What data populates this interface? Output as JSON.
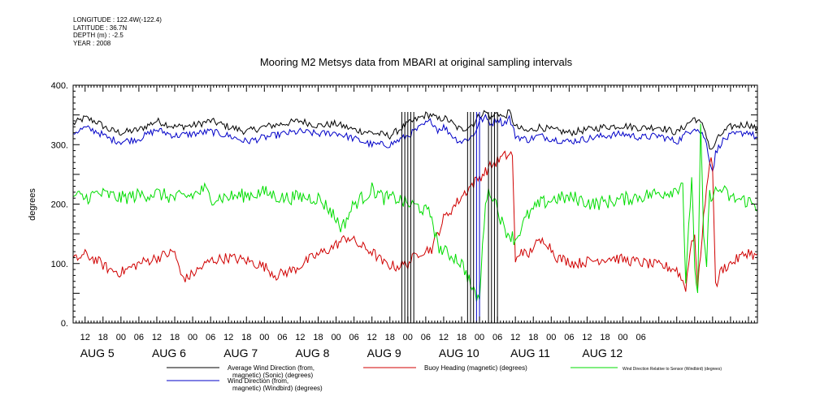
{
  "meta": {
    "longitude": "LONGITUDE : 122.4W(-122.4)",
    "latitude": "LATITUDE : 36.7N",
    "depth": "DEPTH (m) : -2.5",
    "year": "YEAR : 2008"
  },
  "chart_data": {
    "type": "line",
    "title": "Mooring M2 Metsys data from MBARI at original sampling intervals",
    "ylabel": "degrees",
    "xlabel": "",
    "ylim": [
      0,
      400
    ],
    "xlim_hours": [
      -16,
      213
    ],
    "y_ticks": [
      "0.",
      "100.",
      "200.",
      "300.",
      "400."
    ],
    "x_tick_labels": [
      "12",
      "18",
      "00",
      "06",
      "12",
      "18",
      "00",
      "06",
      "12",
      "18",
      "00",
      "06",
      "12",
      "18",
      "00",
      "06",
      "12",
      "18",
      "00",
      "06",
      "12",
      "18",
      "00",
      "06",
      "12",
      "18",
      "00",
      "06",
      "12",
      "18",
      "00",
      "06"
    ],
    "day_labels": [
      "AUG  5",
      "AUG  6",
      "AUG  7",
      "AUG  8",
      "AUG  9",
      "AUG 10",
      "AUG 11",
      "AUG 12"
    ],
    "grid": false,
    "legend_position": "bottom",
    "series": [
      {
        "name": "Average Wind Direction (from, magnetic) (Sonic) (degrees)",
        "color": "#000000",
        "points": [
          [
            -16,
            335
          ],
          [
            -12,
            345
          ],
          [
            -8,
            338
          ],
          [
            -4,
            325
          ],
          [
            0,
            320
          ],
          [
            6,
            325
          ],
          [
            12,
            340
          ],
          [
            18,
            330
          ],
          [
            24,
            332
          ],
          [
            30,
            340
          ],
          [
            36,
            330
          ],
          [
            42,
            322
          ],
          [
            48,
            330
          ],
          [
            54,
            335
          ],
          [
            60,
            340
          ],
          [
            66,
            332
          ],
          [
            72,
            335
          ],
          [
            78,
            325
          ],
          [
            84,
            320
          ],
          [
            90,
            315
          ],
          [
            96,
            335
          ],
          [
            102,
            350
          ],
          [
            104,
            350
          ],
          [
            106,
            342
          ],
          [
            108,
            345
          ],
          [
            110,
            340
          ],
          [
            112,
            330
          ],
          [
            114,
            325
          ],
          [
            118,
            335
          ],
          [
            120,
            350
          ],
          [
            122,
            355
          ],
          [
            124,
            345
          ],
          [
            126,
            355
          ],
          [
            128,
            345
          ],
          [
            130,
            355
          ],
          [
            132,
            330
          ],
          [
            136,
            322
          ],
          [
            140,
            330
          ],
          [
            144,
            325
          ],
          [
            150,
            320
          ],
          [
            156,
            325
          ],
          [
            162,
            330
          ],
          [
            168,
            332
          ],
          [
            174,
            328
          ],
          [
            180,
            330
          ],
          [
            186,
            320
          ],
          [
            192,
            345
          ],
          [
            195,
            330
          ],
          [
            196,
            315
          ],
          [
            197,
            295
          ],
          [
            198,
            290
          ],
          [
            199,
            305
          ],
          [
            201,
            318
          ],
          [
            204,
            330
          ],
          [
            210,
            335
          ],
          [
            213,
            325
          ]
        ]
      },
      {
        "name": "Wind Direction (from, magnetic) (Windbird) (degrees)",
        "color": "#0000c8",
        "points": [
          [
            -16,
            320
          ],
          [
            -12,
            328
          ],
          [
            -8,
            322
          ],
          [
            -4,
            310
          ],
          [
            0,
            305
          ],
          [
            6,
            310
          ],
          [
            12,
            325
          ],
          [
            18,
            315
          ],
          [
            24,
            318
          ],
          [
            30,
            322
          ],
          [
            36,
            315
          ],
          [
            42,
            305
          ],
          [
            48,
            312
          ],
          [
            54,
            318
          ],
          [
            60,
            322
          ],
          [
            66,
            318
          ],
          [
            72,
            320
          ],
          [
            78,
            310
          ],
          [
            84,
            300
          ],
          [
            90,
            300
          ],
          [
            96,
            315
          ],
          [
            102,
            335
          ],
          [
            104,
            340
          ],
          [
            106,
            325
          ],
          [
            108,
            330
          ],
          [
            110,
            320
          ],
          [
            112,
            310
          ],
          [
            114,
            305
          ],
          [
            118,
            315
          ],
          [
            120,
            340
          ],
          [
            122,
            345
          ],
          [
            124,
            335
          ],
          [
            126,
            345
          ],
          [
            128,
            335
          ],
          [
            130,
            345
          ],
          [
            132,
            315
          ],
          [
            136,
            308
          ],
          [
            140,
            315
          ],
          [
            144,
            310
          ],
          [
            150,
            305
          ],
          [
            156,
            310
          ],
          [
            162,
            315
          ],
          [
            168,
            318
          ],
          [
            174,
            312
          ],
          [
            180,
            315
          ],
          [
            186,
            305
          ],
          [
            192,
            330
          ],
          [
            195,
            315
          ],
          [
            196,
            300
          ],
          [
            197,
            275
          ],
          [
            198,
            255
          ],
          [
            199,
            285
          ],
          [
            201,
            305
          ],
          [
            204,
            315
          ],
          [
            210,
            322
          ],
          [
            213,
            310
          ]
        ]
      },
      {
        "name": "Buoy Heading (magnetic) (degrees)",
        "color": "#d00000",
        "points": [
          [
            -16,
            105
          ],
          [
            -12,
            115
          ],
          [
            -8,
            105
          ],
          [
            -4,
            90
          ],
          [
            0,
            85
          ],
          [
            6,
            100
          ],
          [
            12,
            110
          ],
          [
            18,
            120
          ],
          [
            20,
            80
          ],
          [
            22,
            75
          ],
          [
            26,
            90
          ],
          [
            30,
            105
          ],
          [
            36,
            110
          ],
          [
            42,
            105
          ],
          [
            48,
            95
          ],
          [
            52,
            80
          ],
          [
            58,
            90
          ],
          [
            64,
            110
          ],
          [
            70,
            125
          ],
          [
            76,
            145
          ],
          [
            80,
            130
          ],
          [
            84,
            120
          ],
          [
            88,
            100
          ],
          [
            92,
            95
          ],
          [
            96,
            100
          ],
          [
            100,
            120
          ],
          [
            104,
            125
          ],
          [
            108,
            175
          ],
          [
            112,
            200
          ],
          [
            116,
            225
          ],
          [
            120,
            245
          ],
          [
            124,
            265
          ],
          [
            128,
            280
          ],
          [
            131,
            285
          ],
          [
            132,
            100
          ],
          [
            134,
            125
          ],
          [
            136,
            110
          ],
          [
            138,
            130
          ],
          [
            142,
            140
          ],
          [
            146,
            110
          ],
          [
            152,
            100
          ],
          [
            158,
            105
          ],
          [
            164,
            110
          ],
          [
            170,
            105
          ],
          [
            176,
            100
          ],
          [
            182,
            95
          ],
          [
            186,
            90
          ],
          [
            189,
            60
          ],
          [
            191,
            140
          ],
          [
            192,
            150
          ],
          [
            193,
            55
          ],
          [
            195,
            180
          ],
          [
            196,
            220
          ],
          [
            197,
            275
          ],
          [
            198,
            270
          ],
          [
            199,
            60
          ],
          [
            201,
            90
          ],
          [
            204,
            100
          ],
          [
            210,
            120
          ],
          [
            213,
            110
          ]
        ]
      },
      {
        "name": "Wind Direction Relative to Sensor (Windbird) (degrees)",
        "color": "#00dd00",
        "points": [
          [
            -16,
            215
          ],
          [
            -12,
            210
          ],
          [
            -8,
            218
          ],
          [
            -4,
            215
          ],
          [
            0,
            210
          ],
          [
            6,
            215
          ],
          [
            12,
            218
          ],
          [
            18,
            210
          ],
          [
            24,
            215
          ],
          [
            28,
            225
          ],
          [
            30,
            210
          ],
          [
            36,
            212
          ],
          [
            42,
            215
          ],
          [
            48,
            220
          ],
          [
            54,
            210
          ],
          [
            60,
            212
          ],
          [
            66,
            210
          ],
          [
            70,
            190
          ],
          [
            72,
            175
          ],
          [
            74,
            160
          ],
          [
            78,
            200
          ],
          [
            82,
            215
          ],
          [
            84,
            225
          ],
          [
            88,
            210
          ],
          [
            92,
            210
          ],
          [
            96,
            200
          ],
          [
            100,
            195
          ],
          [
            104,
            180
          ],
          [
            106,
            130
          ],
          [
            108,
            120
          ],
          [
            110,
            115
          ],
          [
            112,
            110
          ],
          [
            114,
            100
          ],
          [
            116,
            80
          ],
          [
            118,
            50
          ],
          [
            120,
            40
          ],
          [
            122,
            210
          ],
          [
            124,
            220
          ],
          [
            126,
            195
          ],
          [
            128,
            160
          ],
          [
            132,
            140
          ],
          [
            136,
            180
          ],
          [
            140,
            200
          ],
          [
            146,
            210
          ],
          [
            152,
            210
          ],
          [
            158,
            200
          ],
          [
            164,
            205
          ],
          [
            170,
            210
          ],
          [
            176,
            215
          ],
          [
            182,
            220
          ],
          [
            186,
            225
          ],
          [
            188,
            240
          ],
          [
            189,
            60
          ],
          [
            191,
            250
          ],
          [
            192,
            100
          ],
          [
            193,
            40
          ],
          [
            194,
            330
          ],
          [
            195,
            140
          ],
          [
            196,
            100
          ],
          [
            197,
            215
          ],
          [
            201,
            225
          ],
          [
            204,
            210
          ],
          [
            210,
            205
          ],
          [
            213,
            195
          ]
        ]
      }
    ],
    "gaps": [
      {
        "color": "#000000",
        "hours": [
          94,
          95,
          96,
          97,
          98,
          116,
          117,
          118,
          123,
          124,
          125,
          126
        ]
      },
      {
        "color": "#0000c8",
        "hours": [
          119,
          120
        ]
      }
    ]
  },
  "legend": {
    "items": [
      {
        "label_line1": "Average Wind Direction (from,",
        "label_line2": "magnetic) (Sonic) (degrees)",
        "color": "#000000"
      },
      {
        "label_line1": "Wind Direction (from,",
        "label_line2": "magnetic) (Windbird) (degrees)",
        "color": "#0000c8"
      },
      {
        "label_line1": "Buoy Heading (magnetic) (degrees)",
        "label_line2": "",
        "color": "#d00000"
      },
      {
        "label_line1": "Wind Direction Relative to Sensor (Windbird) (degrees)",
        "label_line2": "",
        "color": "#00dd00"
      }
    ]
  }
}
